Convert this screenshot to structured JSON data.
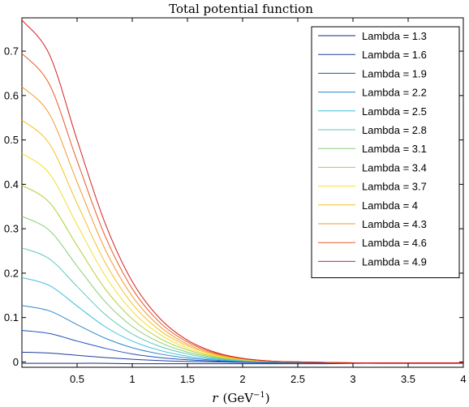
{
  "chart_data": {
    "type": "line",
    "title": "Total potential function",
    "xlabel_main": "r",
    "xlabel_unit": "(GeV",
    "xlabel_exp": "−1",
    "xlabel_close": ")",
    "ylabel": "",
    "xlim": [
      0,
      4
    ],
    "ylim": [
      -0.012,
      0.775
    ],
    "xticks": [
      0.5,
      1,
      1.5,
      2,
      2.5,
      3,
      3.5,
      4
    ],
    "xtick_labels": [
      "0.5",
      "1",
      "1.5",
      "2",
      "2.5",
      "3",
      "3.5",
      "4"
    ],
    "yticks": [
      0,
      0.1,
      0.2,
      0.3,
      0.4,
      0.5,
      0.6,
      0.7
    ],
    "ytick_labels": [
      "0",
      "0.1",
      "0.2",
      "0.3",
      "0.4",
      "0.5",
      "0.6",
      "0.7"
    ],
    "grid": false,
    "legend_position": "top-right",
    "x": [
      0,
      0.25,
      0.5,
      0.75,
      1,
      1.25,
      1.5,
      1.75,
      2,
      2.25,
      2.5,
      2.75,
      3,
      3.25,
      3.5,
      3.75,
      4
    ],
    "series": [
      {
        "name": "Lambda = 1.3",
        "color": "#1a2a7a",
        "values": [
          -0.003,
          -0.003,
          -0.003,
          -0.003,
          -0.004,
          -0.004,
          -0.004,
          -0.004,
          -0.004,
          -0.004,
          -0.004,
          -0.004,
          -0.003,
          -0.003,
          -0.003,
          -0.003,
          -0.003
        ]
      },
      {
        "name": "Lambda = 1.6",
        "color": "#1f3f9e",
        "values": [
          0.022,
          0.02,
          0.015,
          0.01,
          0.006,
          0.003,
          0.001,
          0.0,
          -0.001,
          -0.002,
          -0.002,
          -0.002,
          -0.002,
          -0.002,
          -0.002,
          -0.002,
          -0.002
        ]
      },
      {
        "name": "Lambda = 1.9",
        "color": "#2050b8",
        "values": [
          0.071,
          0.064,
          0.047,
          0.031,
          0.018,
          0.01,
          0.005,
          0.002,
          0.0,
          -0.001,
          -0.001,
          -0.002,
          -0.002,
          -0.002,
          -0.002,
          -0.002,
          -0.002
        ]
      },
      {
        "name": "Lambda = 2.2",
        "color": "#2a86cf",
        "values": [
          0.127,
          0.115,
          0.084,
          0.054,
          0.032,
          0.018,
          0.009,
          0.004,
          0.001,
          0.0,
          -0.001,
          -0.001,
          -0.002,
          -0.002,
          -0.002,
          -0.002,
          -0.002
        ]
      },
      {
        "name": "Lambda = 2.5",
        "color": "#3cc0e0",
        "values": [
          0.19,
          0.172,
          0.126,
          0.08,
          0.047,
          0.026,
          0.013,
          0.006,
          0.002,
          0.0,
          -0.001,
          -0.001,
          -0.002,
          -0.002,
          -0.002,
          -0.002,
          -0.002
        ]
      },
      {
        "name": "Lambda = 2.8",
        "color": "#5fc8b8",
        "values": [
          0.257,
          0.232,
          0.17,
          0.108,
          0.063,
          0.035,
          0.018,
          0.008,
          0.003,
          0.001,
          -0.001,
          -0.001,
          -0.002,
          -0.002,
          -0.002,
          -0.002,
          -0.002
        ]
      },
      {
        "name": "Lambda = 3.1",
        "color": "#8ccc78",
        "values": [
          0.328,
          0.296,
          0.216,
          0.137,
          0.08,
          0.044,
          0.022,
          0.01,
          0.004,
          0.001,
          0.0,
          -0.001,
          -0.002,
          -0.002,
          -0.002,
          -0.002,
          -0.002
        ]
      },
      {
        "name": "Lambda = 3.4",
        "color": "#b0d038",
        "values": [
          0.398,
          0.359,
          0.262,
          0.166,
          0.097,
          0.053,
          0.027,
          0.012,
          0.005,
          0.001,
          0.0,
          -0.001,
          -0.002,
          -0.002,
          -0.002,
          -0.002,
          -0.002
        ]
      },
      {
        "name": "Lambda = 3.7",
        "color": "#f0e030",
        "values": [
          0.47,
          0.424,
          0.309,
          0.196,
          0.114,
          0.062,
          0.031,
          0.014,
          0.005,
          0.001,
          0.0,
          -0.001,
          -0.002,
          -0.002,
          -0.002,
          -0.002,
          -0.002
        ]
      },
      {
        "name": "Lambda = 4",
        "color": "#f6c020",
        "values": [
          0.545,
          0.491,
          0.357,
          0.226,
          0.131,
          0.071,
          0.036,
          0.016,
          0.006,
          0.002,
          0.0,
          -0.001,
          -0.002,
          -0.002,
          -0.002,
          -0.002,
          -0.002
        ]
      },
      {
        "name": "Lambda = 4.3",
        "color": "#f09a30",
        "values": [
          0.62,
          0.558,
          0.405,
          0.256,
          0.148,
          0.08,
          0.04,
          0.018,
          0.007,
          0.002,
          0.0,
          -0.001,
          -0.002,
          -0.002,
          -0.002,
          -0.002,
          -0.002
        ]
      },
      {
        "name": "Lambda = 4.6",
        "color": "#e85828",
        "values": [
          0.695,
          0.625,
          0.453,
          0.286,
          0.165,
          0.089,
          0.045,
          0.02,
          0.008,
          0.002,
          0.0,
          -0.001,
          -0.002,
          -0.002,
          -0.002,
          -0.002,
          -0.002
        ]
      },
      {
        "name": "Lambda = 4.9",
        "color": "#d42020",
        "values": [
          0.77,
          0.692,
          0.5,
          0.315,
          0.181,
          0.098,
          0.049,
          0.022,
          0.008,
          0.002,
          0.0,
          -0.001,
          -0.002,
          -0.002,
          -0.002,
          -0.002,
          -0.002
        ]
      }
    ]
  }
}
